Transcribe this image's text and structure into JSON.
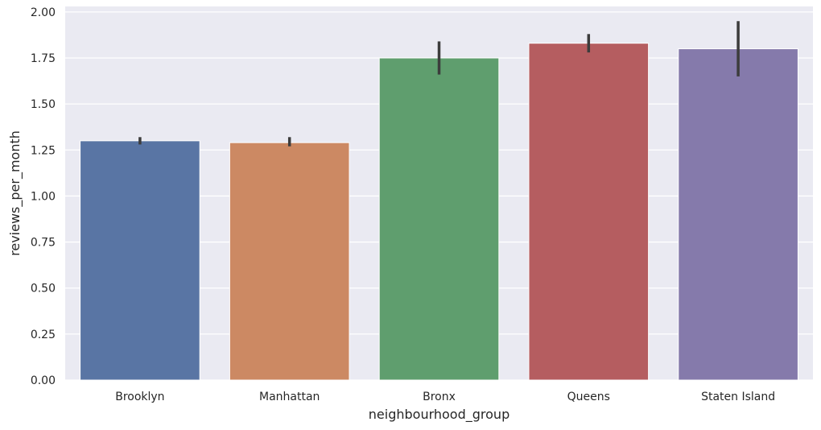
{
  "chart_data": {
    "type": "bar",
    "title": "",
    "xlabel": "neighbourhood_group",
    "ylabel": "reviews_per_month",
    "categories": [
      "Brooklyn",
      "Manhattan",
      "Bronx",
      "Queens",
      "Staten Island"
    ],
    "values": [
      1.3,
      1.29,
      1.75,
      1.83,
      1.8
    ],
    "error_bars": [
      {
        "low": 1.28,
        "high": 1.32
      },
      {
        "low": 1.27,
        "high": 1.32
      },
      {
        "low": 1.66,
        "high": 1.84
      },
      {
        "low": 1.78,
        "high": 1.88
      },
      {
        "low": 1.65,
        "high": 1.95
      }
    ],
    "colors": [
      "#5975a4",
      "#cc8963",
      "#5f9e6e",
      "#b55d60",
      "#857aab"
    ],
    "errorbar_color": "#3c3c3c",
    "ylim": [
      0,
      2.03
    ],
    "yticks": [
      "0.00",
      "0.25",
      "0.50",
      "0.75",
      "1.00",
      "1.25",
      "1.50",
      "1.75",
      "2.00"
    ],
    "grid": true,
    "background": "#eaeaf2",
    "legend": "none"
  }
}
